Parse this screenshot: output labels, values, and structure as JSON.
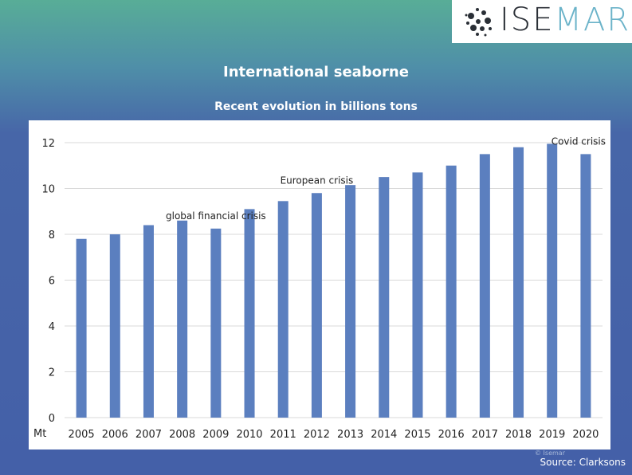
{
  "logo": {
    "text_dark": "ISE",
    "text_light": "MAR"
  },
  "title": "International seaborne",
  "subtitle": "Recent evolution in billions tons",
  "source": "Source: Clarksons",
  "watermark": "© Isemar",
  "colors": {
    "bar": "#5b7fbf",
    "grid": "#d9d9d9"
  },
  "chart_data": {
    "type": "bar",
    "title": "Recent evolution in billions tons",
    "ylabel": "Mt",
    "xlabel": "",
    "ylim": [
      0,
      12
    ],
    "yticks": [
      "0",
      "2",
      "4",
      "6",
      "8",
      "10",
      "12"
    ],
    "categories": [
      "2005",
      "2006",
      "2007",
      "2008",
      "2009",
      "2010",
      "2011",
      "2012",
      "2013",
      "2014",
      "2015",
      "2016",
      "2017",
      "2018",
      "2019",
      "2020"
    ],
    "values": [
      7.8,
      8.0,
      8.4,
      8.6,
      8.25,
      9.1,
      9.45,
      9.8,
      10.15,
      10.5,
      10.7,
      11.0,
      11.5,
      11.8,
      11.95,
      11.5
    ],
    "annotations": [
      {
        "text": "global financial crisis",
        "category": "2009"
      },
      {
        "text": "European crisis",
        "category": "2012"
      },
      {
        "text": "Covid crisis",
        "category": "2020"
      }
    ]
  }
}
